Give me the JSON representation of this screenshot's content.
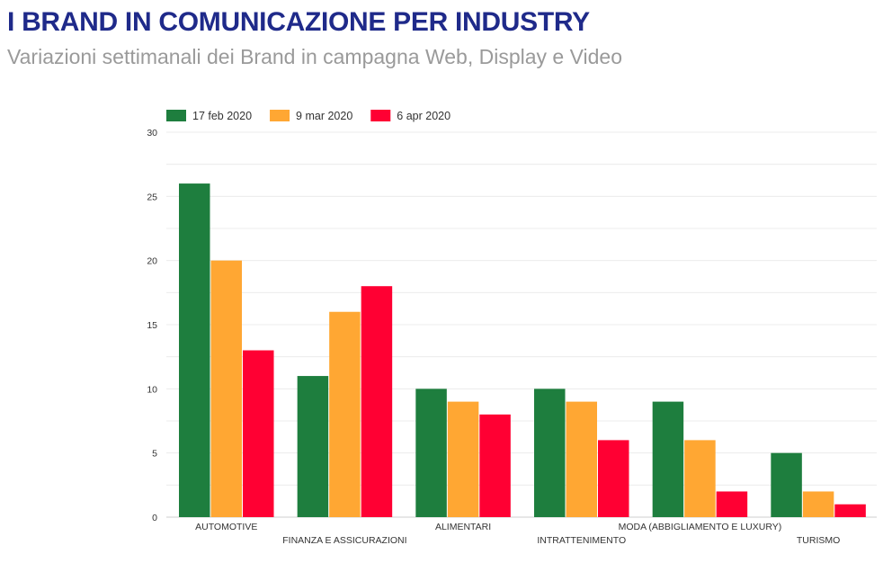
{
  "header": {
    "title": "I BRAND IN COMUNICAZIONE PER INDUSTRY",
    "subtitle": "Variazioni settimanali dei Brand in campagna Web, Display e Video"
  },
  "chart_data": {
    "type": "bar",
    "title": "I BRAND IN COMUNICAZIONE PER INDUSTRY",
    "subtitle": "Variazioni settimanali dei Brand in campagna Web, Display e Video",
    "xlabel": "",
    "ylabel": "",
    "ylim": [
      0,
      30
    ],
    "yticks": [
      0,
      5,
      10,
      15,
      20,
      25,
      30
    ],
    "grid": true,
    "legend_position": "top-left",
    "categories": [
      "AUTOMOTIVE",
      "FINANZA E ASSICURAZIONI",
      "ALIMENTARI",
      "INTRATTENIMENTO",
      "MODA (ABBIGLIAMENTO E LUXURY)",
      "TURISMO"
    ],
    "series": [
      {
        "name": "17 feb 2020",
        "color": "#1e7e3e",
        "values": [
          26,
          11,
          10,
          10,
          9,
          5
        ]
      },
      {
        "name": "9 mar 2020",
        "color": "#ffa733",
        "values": [
          20,
          16,
          9,
          9,
          6,
          2
        ]
      },
      {
        "name": "6 apr 2020",
        "color": "#ff0033",
        "values": [
          13,
          18,
          8,
          6,
          2,
          1
        ]
      }
    ]
  }
}
